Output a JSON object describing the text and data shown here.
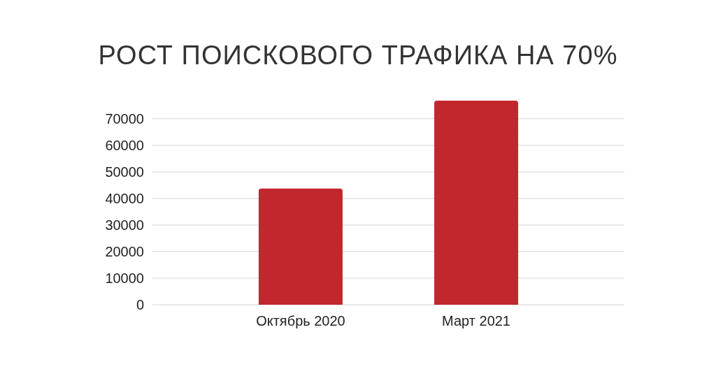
{
  "chart_data": {
    "type": "bar",
    "title": "РОСТ ПОИСКОВОГО ТРАФИКА НА 70%",
    "categories": [
      "Октябрь 2020",
      "Март 2021"
    ],
    "values": [
      43700,
      76800
    ],
    "color": "#c1272d",
    "ylim": [
      0,
      76800
    ],
    "yticks": [
      0,
      10000,
      20000,
      30000,
      40000,
      50000,
      60000,
      70000
    ],
    "grid": "y"
  }
}
